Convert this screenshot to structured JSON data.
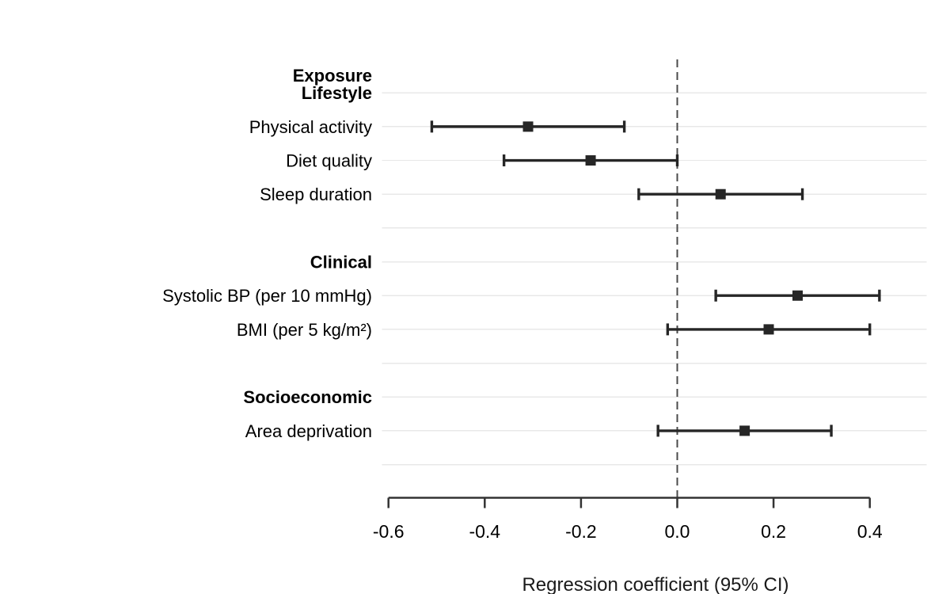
{
  "chart_data": {
    "type": "forest",
    "title": "",
    "xlabel": "Regression coefficient (95% CI)",
    "column_header": "Exposure",
    "x_axis": {
      "xlim": [
        -0.6,
        0.4
      ],
      "ticks": [
        -0.6,
        -0.4,
        -0.2,
        0.0,
        0.2,
        0.4
      ],
      "tick_labels": [
        "-0.6",
        "-0.4",
        "-0.2",
        "0.0",
        "0.2",
        "0.4"
      ]
    },
    "zero_reference_line": 0.0,
    "grid": "horizontal-rows-only",
    "legend": "none",
    "groups": [
      {
        "name": "Lifestyle",
        "items": [
          {
            "label": "Physical activity",
            "estimate": -0.31,
            "ci_low": -0.51,
            "ci_high": -0.11
          },
          {
            "label": "Diet quality",
            "estimate": -0.18,
            "ci_low": -0.36,
            "ci_high": 0.0
          },
          {
            "label": "Sleep duration",
            "estimate": 0.09,
            "ci_low": -0.08,
            "ci_high": 0.26
          }
        ]
      },
      {
        "name": "Clinical",
        "items": [
          {
            "label": "Systolic BP (per 10 mmHg)",
            "estimate": 0.25,
            "ci_low": 0.08,
            "ci_high": 0.42
          },
          {
            "label": "BMI (per 5 kg/m²)",
            "estimate": 0.19,
            "ci_low": -0.02,
            "ci_high": 0.4
          }
        ]
      },
      {
        "name": "Socioeconomic",
        "items": [
          {
            "label": "Area deprivation",
            "estimate": 0.14,
            "ci_low": -0.04,
            "ci_high": 0.32
          }
        ]
      }
    ],
    "colors": {
      "marker": "#262626",
      "ci_line": "#262626",
      "gridline": "#e8e8e8",
      "zero_line": "#4a4a4a",
      "axis": "#333333",
      "text": "#000000"
    }
  }
}
